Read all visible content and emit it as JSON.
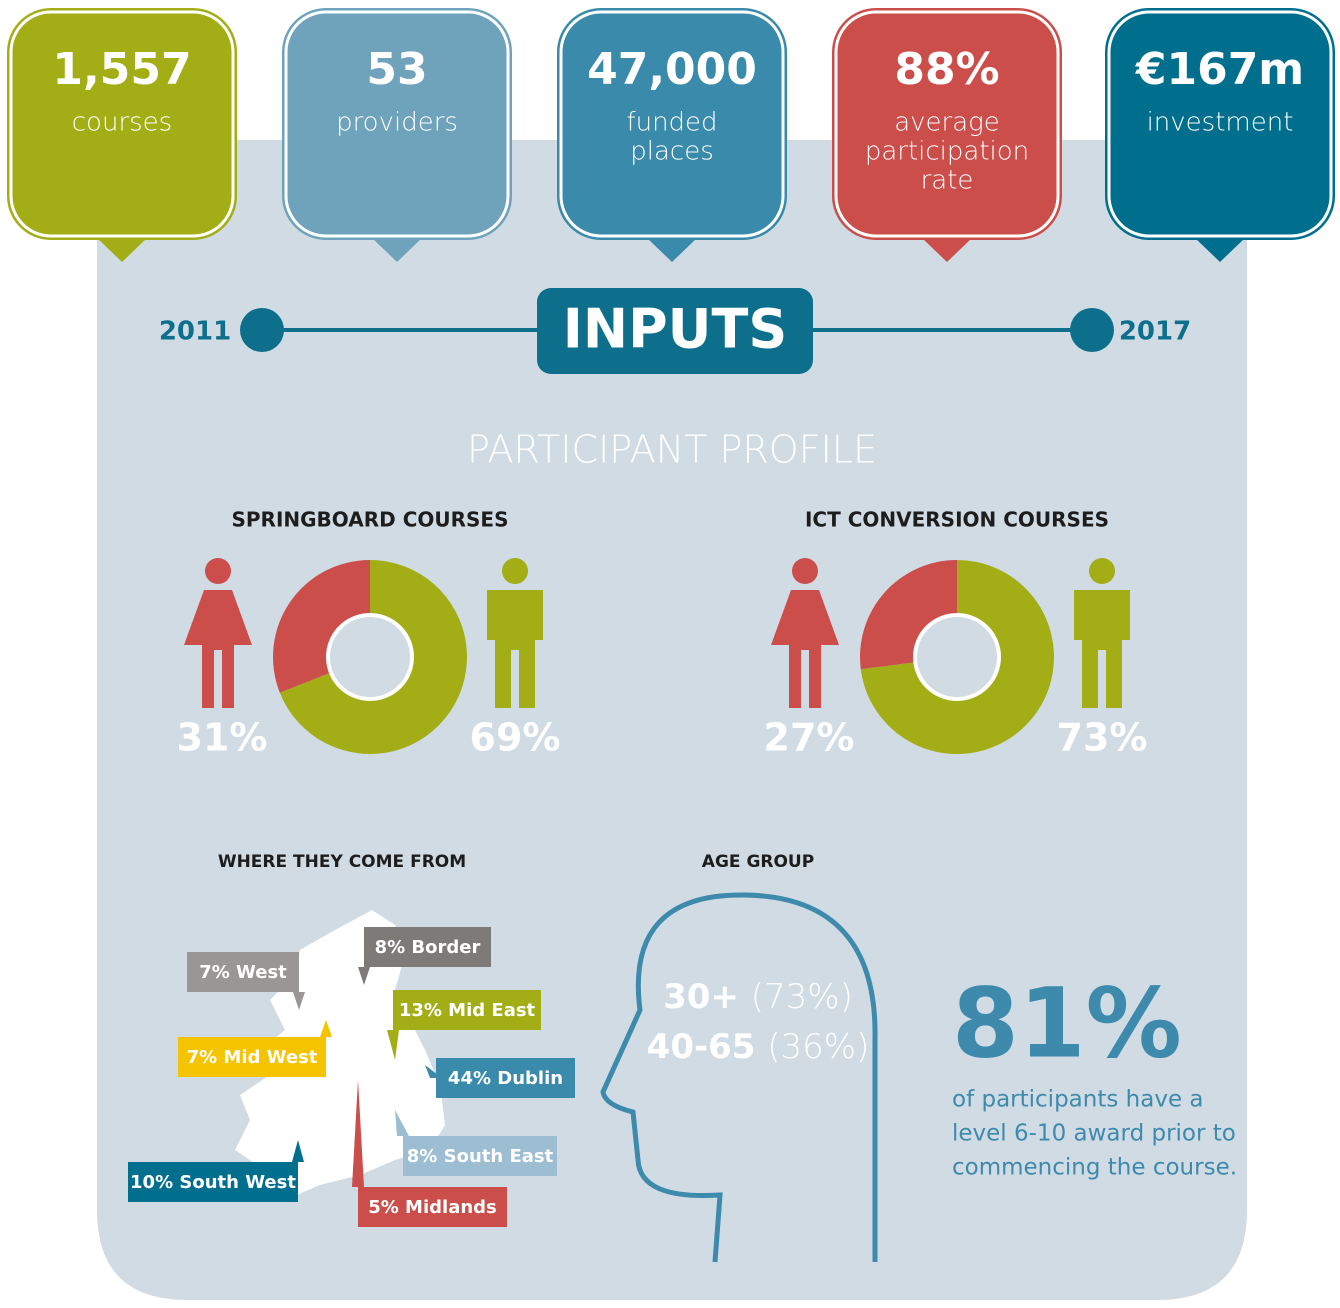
{
  "stats": [
    {
      "value": "1,557",
      "label": [
        "courses"
      ],
      "color": "#a3ae17"
    },
    {
      "value": "53",
      "label": [
        "providers"
      ],
      "color": "#6fa3bb"
    },
    {
      "value": "47,000",
      "label": [
        "funded",
        "places"
      ],
      "color": "#3a8aab"
    },
    {
      "value": "88%",
      "label": [
        "average",
        "participation",
        "rate"
      ],
      "color": "#cc4e4b"
    },
    {
      "value": "€167m",
      "label": [
        "investment"
      ],
      "color": "#006f8e"
    }
  ],
  "timeline": {
    "start": "2011",
    "title": "INPUTS",
    "end": "2017"
  },
  "profile": {
    "title": "PARTICIPANT PROFILE",
    "charts": [
      {
        "title": "SPRINGBOARD COURSES",
        "values": [
          31,
          69
        ],
        "value_labels": [
          "31%",
          "69%"
        ],
        "colors": [
          "#cc4e4b",
          "#a3ae17"
        ]
      },
      {
        "title": "ICT CONVERSION COURSES",
        "values": [
          27,
          73
        ],
        "value_labels": [
          "27%",
          "73%"
        ],
        "colors": [
          "#cc4e4b",
          "#a3ae17"
        ]
      }
    ]
  },
  "regions": {
    "title": "WHERE THEY COME FROM",
    "items": [
      {
        "label": "7% West",
        "color": "#9b9696"
      },
      {
        "label": "8% Border",
        "color": "#7d7a78"
      },
      {
        "label": "13% Mid East",
        "color": "#a3ae17"
      },
      {
        "label": "7% Mid West",
        "color": "#f5c400"
      },
      {
        "label": "44% Dublin",
        "color": "#3a8aab"
      },
      {
        "label": "8% South East",
        "color": "#9cbdd2"
      },
      {
        "label": "10% South West",
        "color": "#006f8e"
      },
      {
        "label": "5% Midlands",
        "color": "#cc4e4b"
      }
    ]
  },
  "age": {
    "title": "AGE GROUP",
    "groups": [
      {
        "range": "30+",
        "share": "(73%)"
      },
      {
        "range": "40-65",
        "share": "(36%)"
      }
    ]
  },
  "award": {
    "value": "81%",
    "text": [
      "of participants have a",
      "level 6-10 award prior to",
      "commencing the course."
    ]
  }
}
